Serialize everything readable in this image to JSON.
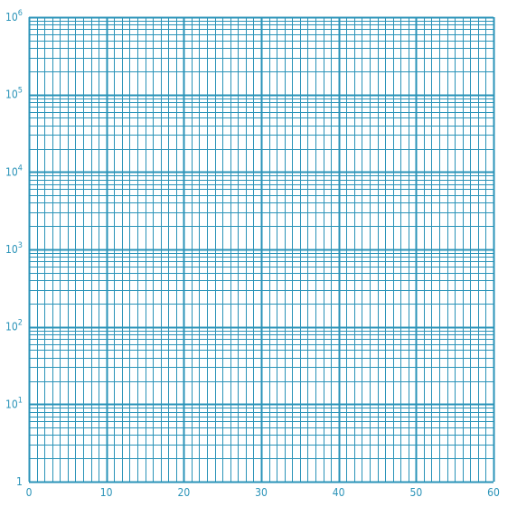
{
  "chart_data": {
    "type": "table",
    "title": "",
    "xlabel": "",
    "ylabel": "",
    "x_scale": "linear",
    "y_scale": "log",
    "xlim": [
      0,
      60
    ],
    "ylim": [
      1,
      1000000
    ],
    "x_major_step": 10,
    "x_minor_step": 1,
    "y_minor_multiples": [
      2,
      3,
      4,
      5,
      6,
      7,
      8,
      9
    ],
    "grid": true,
    "series": [],
    "x_tick_labels": [
      "0",
      "10",
      "20",
      "30",
      "40",
      "50",
      "60"
    ],
    "y_tick_labels": [
      {
        "base": "1",
        "exp": ""
      },
      {
        "base": "10",
        "exp": "1"
      },
      {
        "base": "10",
        "exp": "2"
      },
      {
        "base": "10",
        "exp": "3"
      },
      {
        "base": "10",
        "exp": "4"
      },
      {
        "base": "10",
        "exp": "5"
      },
      {
        "base": "10",
        "exp": "6"
      }
    ],
    "colors": {
      "grid": "#2a93b8",
      "text": "#2a93b8"
    }
  }
}
